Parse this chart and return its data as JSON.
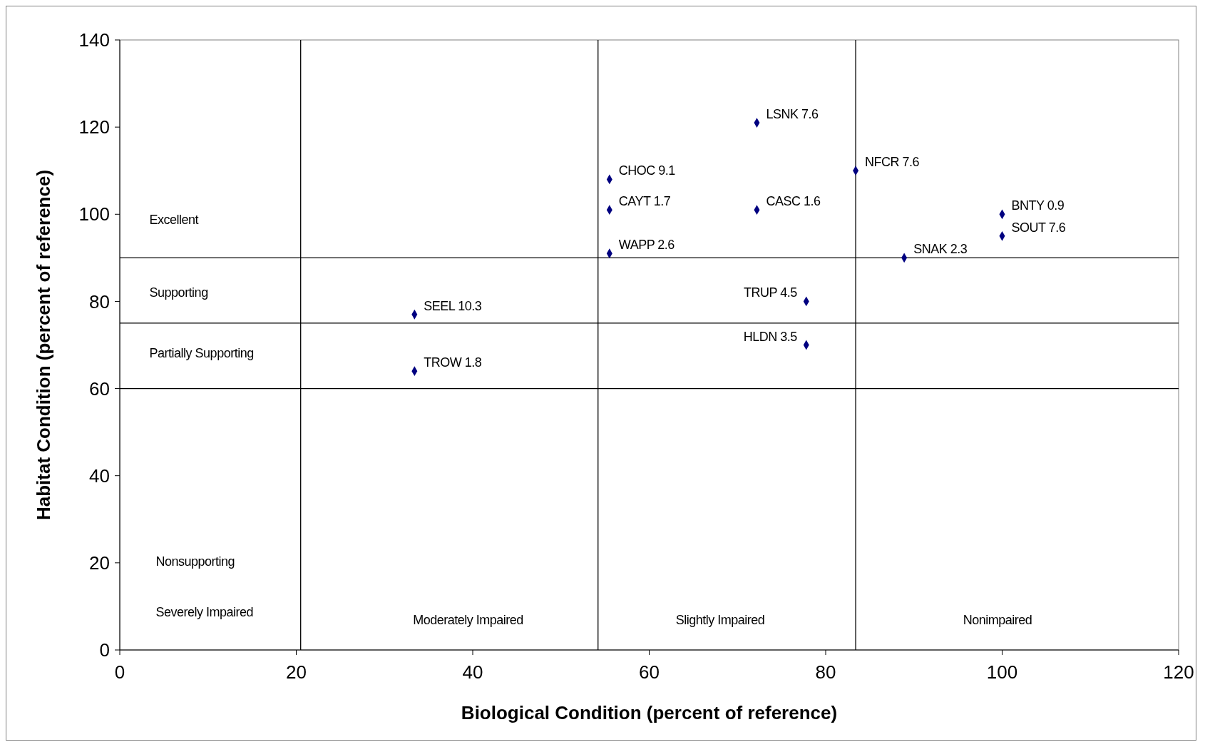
{
  "chart_data": {
    "type": "scatter",
    "xlabel": "Biological Condition (percent of reference)",
    "ylabel": "Habitat Condition (percent of reference)",
    "xlim": [
      0,
      120
    ],
    "xticks": [
      0,
      20,
      40,
      60,
      80,
      100,
      120
    ],
    "ylim": [
      0,
      140
    ],
    "yticks": [
      0,
      20,
      40,
      60,
      80,
      100,
      120,
      140
    ],
    "grid": false,
    "marker": "diamond",
    "series": [
      {
        "color": "#000080",
        "x": [
          72.2,
          55.5,
          55.5,
          55.5,
          72.2,
          83.4,
          100,
          100,
          88.9,
          77.8,
          77.8,
          33.4,
          33.4
        ],
        "values": [
          121,
          108,
          101,
          91,
          101,
          110,
          100,
          95,
          90,
          80,
          70,
          77,
          64
        ],
        "value_labels": [
          "LSNK 7.6",
          "CHOC 9.1",
          "CAYT 1.7",
          "WAPP 2.6",
          "CASC 1.6",
          "NFCR 7.6",
          "BNTY 0.9",
          "SOUT 7.6",
          "SNAK 2.3",
          "TRUP 4.5",
          "HLDN 3.5",
          "SEEL 10.3",
          "TROW 1.8"
        ]
      }
    ],
    "ref_lines": [
      {
        "axis": "x",
        "value": 20.5
      },
      {
        "axis": "x",
        "value": 54.2
      },
      {
        "axis": "x",
        "value": 83.4
      },
      {
        "axis": "y",
        "value": 90
      },
      {
        "axis": "y",
        "value": 75
      },
      {
        "axis": "y",
        "value": 60
      }
    ],
    "annotations": [
      "Excellent",
      "Supporting",
      "Partially Supporting",
      "Nonsupporting",
      "Severely Impaired",
      "Moderately Impaired",
      "Slightly Impaired",
      "Nonimpaired"
    ]
  }
}
